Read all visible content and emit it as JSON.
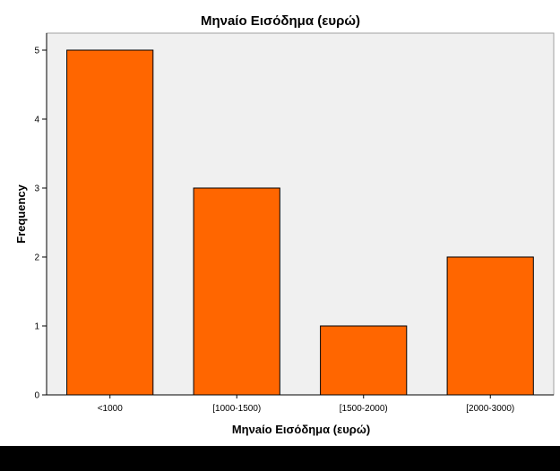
{
  "chart_data": {
    "type": "bar",
    "title": "Μηνaίο Εισόδημα (ευρώ)",
    "xlabel": "Μηνaίο Εισόδημα (ευρώ)",
    "ylabel": "Frequency",
    "categories": [
      "<1000",
      "[1000-1500)",
      "[1500-2000)",
      "[2000-3000)"
    ],
    "values": [
      5,
      3,
      1,
      2
    ],
    "ylim": [
      0,
      5
    ],
    "yticks": [
      0,
      1,
      2,
      3,
      4,
      5
    ],
    "grid": false,
    "colors": {
      "bar_fill": "#ff6600",
      "bar_stroke": "#000000",
      "plot_background": "#f0f0f0",
      "bottom_bar": "#000000"
    }
  }
}
